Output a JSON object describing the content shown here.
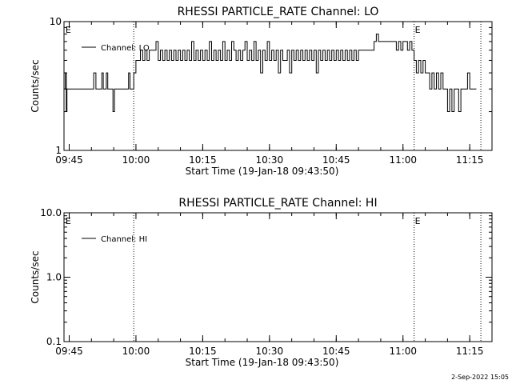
{
  "chart_data": [
    {
      "type": "line",
      "title": "RHESSI PARTICLE_RATE Channel: LO",
      "xlabel": "Start Time (19-Jan-18 09:43:50)",
      "ylabel": "Counts/sec",
      "yscale": "log",
      "ylim": [
        1,
        10
      ],
      "y_ticks": [
        {
          "value": 1,
          "label": "1"
        },
        {
          "value": 10,
          "label": "10"
        }
      ],
      "xlim": [
        "09:43:50",
        "11:20:00"
      ],
      "x_ticks": [
        "09:45",
        "10:00",
        "10:15",
        "10:30",
        "10:45",
        "11:00",
        "11:15"
      ],
      "vlines": [
        "09:59:30",
        "11:02:30",
        "11:17:30"
      ],
      "e_markers": [
        {
          "label": "E",
          "x": "09:44:10"
        },
        {
          "label": "E",
          "x": "11:02:40"
        }
      ],
      "legend": {
        "position": "top-left",
        "entries": [
          "Channel: LO"
        ]
      },
      "series": [
        {
          "name": "Channel: LO",
          "points": [
            [
              "09:44:00",
              3
            ],
            [
              "09:44:10",
              4
            ],
            [
              "09:44:20",
              2
            ],
            [
              "09:44:30",
              3
            ],
            [
              "09:50:00",
              3
            ],
            [
              "09:50:30",
              4
            ],
            [
              "09:51:00",
              3
            ],
            [
              "09:52:00",
              3
            ],
            [
              "09:52:20",
              4
            ],
            [
              "09:52:40",
              3
            ],
            [
              "09:53:00",
              3
            ],
            [
              "09:53:20",
              4
            ],
            [
              "09:53:40",
              3
            ],
            [
              "09:54:30",
              3
            ],
            [
              "09:54:50",
              2
            ],
            [
              "09:55:10",
              3
            ],
            [
              "09:58:00",
              3
            ],
            [
              "09:58:20",
              4
            ],
            [
              "09:58:40",
              3
            ],
            [
              "09:59:30",
              4
            ],
            [
              "10:00:00",
              5
            ],
            [
              "10:00:30",
              5
            ],
            [
              "10:01:00",
              6
            ],
            [
              "10:01:30",
              5
            ],
            [
              "10:02:00",
              6
            ],
            [
              "10:02:30",
              5
            ],
            [
              "10:03:00",
              6
            ],
            [
              "10:04:00",
              6
            ],
            [
              "10:04:30",
              7
            ],
            [
              "10:05:00",
              5
            ],
            [
              "10:05:30",
              6
            ],
            [
              "10:06:00",
              5
            ],
            [
              "10:06:30",
              6
            ],
            [
              "10:07:00",
              5
            ],
            [
              "10:07:30",
              6
            ],
            [
              "10:08:00",
              5
            ],
            [
              "10:08:30",
              6
            ],
            [
              "10:09:00",
              5
            ],
            [
              "10:09:30",
              6
            ],
            [
              "10:10:00",
              5
            ],
            [
              "10:10:30",
              6
            ],
            [
              "10:11:00",
              5
            ],
            [
              "10:11:30",
              6
            ],
            [
              "10:12:00",
              5
            ],
            [
              "10:12:30",
              7
            ],
            [
              "10:13:00",
              5
            ],
            [
              "10:13:30",
              6
            ],
            [
              "10:14:00",
              5
            ],
            [
              "10:14:30",
              6
            ],
            [
              "10:15:00",
              5
            ],
            [
              "10:15:30",
              6
            ],
            [
              "10:16:00",
              5
            ],
            [
              "10:16:30",
              7
            ],
            [
              "10:17:00",
              5
            ],
            [
              "10:17:30",
              6
            ],
            [
              "10:18:00",
              5
            ],
            [
              "10:18:30",
              6
            ],
            [
              "10:19:00",
              5
            ],
            [
              "10:19:30",
              7
            ],
            [
              "10:20:00",
              5
            ],
            [
              "10:20:30",
              6
            ],
            [
              "10:21:00",
              5
            ],
            [
              "10:21:30",
              7
            ],
            [
              "10:22:00",
              6
            ],
            [
              "10:22:30",
              5
            ],
            [
              "10:23:00",
              6
            ],
            [
              "10:23:30",
              5
            ],
            [
              "10:24:00",
              6
            ],
            [
              "10:24:30",
              7
            ],
            [
              "10:25:00",
              5
            ],
            [
              "10:25:30",
              6
            ],
            [
              "10:26:00",
              5
            ],
            [
              "10:26:30",
              7
            ],
            [
              "10:27:00",
              5
            ],
            [
              "10:27:30",
              6
            ],
            [
              "10:28:00",
              4
            ],
            [
              "10:28:30",
              6
            ],
            [
              "10:29:00",
              5
            ],
            [
              "10:29:30",
              7
            ],
            [
              "10:30:00",
              5
            ],
            [
              "10:30:30",
              6
            ],
            [
              "10:31:00",
              5
            ],
            [
              "10:31:30",
              6
            ],
            [
              "10:32:00",
              4
            ],
            [
              "10:32:30",
              6
            ],
            [
              "10:33:00",
              5
            ],
            [
              "10:33:30",
              5
            ],
            [
              "10:34:00",
              6
            ],
            [
              "10:34:30",
              4
            ],
            [
              "10:35:00",
              6
            ],
            [
              "10:35:30",
              5
            ],
            [
              "10:36:00",
              6
            ],
            [
              "10:36:30",
              5
            ],
            [
              "10:37:00",
              6
            ],
            [
              "10:37:30",
              5
            ],
            [
              "10:38:00",
              6
            ],
            [
              "10:38:30",
              5
            ],
            [
              "10:39:00",
              6
            ],
            [
              "10:39:30",
              5
            ],
            [
              "10:40:00",
              6
            ],
            [
              "10:40:30",
              4
            ],
            [
              "10:41:00",
              6
            ],
            [
              "10:41:30",
              5
            ],
            [
              "10:42:00",
              6
            ],
            [
              "10:42:30",
              5
            ],
            [
              "10:43:00",
              6
            ],
            [
              "10:43:30",
              5
            ],
            [
              "10:44:00",
              6
            ],
            [
              "10:44:30",
              5
            ],
            [
              "10:45:00",
              6
            ],
            [
              "10:45:30",
              5
            ],
            [
              "10:46:00",
              6
            ],
            [
              "10:46:30",
              5
            ],
            [
              "10:47:00",
              6
            ],
            [
              "10:47:30",
              5
            ],
            [
              "10:48:00",
              6
            ],
            [
              "10:48:30",
              5
            ],
            [
              "10:49:00",
              6
            ],
            [
              "10:49:30",
              5
            ],
            [
              "10:50:00",
              6
            ],
            [
              "10:50:30",
              6
            ],
            [
              "10:51:00",
              6
            ],
            [
              "10:51:30",
              6
            ],
            [
              "10:52:00",
              6
            ],
            [
              "10:52:30",
              6
            ],
            [
              "10:53:00",
              6
            ],
            [
              "10:53:30",
              7
            ],
            [
              "10:54:00",
              8
            ],
            [
              "10:54:30",
              7
            ],
            [
              "10:55:00",
              7
            ],
            [
              "10:55:30",
              7
            ],
            [
              "10:56:00",
              7
            ],
            [
              "10:57:00",
              7
            ],
            [
              "10:58:00",
              7
            ],
            [
              "10:58:30",
              6
            ],
            [
              "10:59:00",
              7
            ],
            [
              "10:59:30",
              6
            ],
            [
              "11:00:00",
              7
            ],
            [
              "11:00:30",
              7
            ],
            [
              "11:01:00",
              6
            ],
            [
              "11:01:30",
              7
            ],
            [
              "11:02:00",
              6
            ],
            [
              "11:02:30",
              5
            ],
            [
              "11:03:00",
              4
            ],
            [
              "11:03:30",
              5
            ],
            [
              "11:04:00",
              4
            ],
            [
              "11:04:30",
              5
            ],
            [
              "11:05:00",
              4
            ],
            [
              "11:05:30",
              4
            ],
            [
              "11:06:00",
              3
            ],
            [
              "11:06:30",
              4
            ],
            [
              "11:07:00",
              3
            ],
            [
              "11:07:30",
              4
            ],
            [
              "11:08:00",
              3
            ],
            [
              "11:08:30",
              4
            ],
            [
              "11:09:00",
              3
            ],
            [
              "11:09:30",
              3
            ],
            [
              "11:10:00",
              2
            ],
            [
              "11:10:30",
              3
            ],
            [
              "11:11:00",
              2
            ],
            [
              "11:11:30",
              3
            ],
            [
              "11:12:00",
              3
            ],
            [
              "11:12:30",
              2
            ],
            [
              "11:13:00",
              3
            ],
            [
              "11:13:30",
              3
            ],
            [
              "11:14:00",
              3
            ],
            [
              "11:14:30",
              4
            ],
            [
              "11:15:00",
              3
            ],
            [
              "11:16:30",
              3
            ]
          ]
        }
      ]
    },
    {
      "type": "line",
      "title": "RHESSI PARTICLE_RATE Channel: HI",
      "xlabel": "Start Time (19-Jan-18 09:43:50)",
      "ylabel": "Counts/sec",
      "yscale": "log",
      "ylim": [
        0.1,
        10
      ],
      "y_ticks": [
        {
          "value": 0.1,
          "label": "0.1"
        },
        {
          "value": 1,
          "label": "1.0"
        },
        {
          "value": 10,
          "label": "10.0"
        }
      ],
      "xlim": [
        "09:43:50",
        "11:20:00"
      ],
      "x_ticks": [
        "09:45",
        "10:00",
        "10:15",
        "10:30",
        "10:45",
        "11:00",
        "11:15"
      ],
      "vlines": [
        "09:59:30",
        "11:02:30",
        "11:17:30"
      ],
      "e_markers": [
        {
          "label": "E",
          "x": "09:44:10"
        },
        {
          "label": "E",
          "x": "11:02:40"
        }
      ],
      "legend": {
        "position": "top-left",
        "entries": [
          "Channel: HI"
        ]
      },
      "series": [
        {
          "name": "Channel: HI",
          "points": []
        }
      ]
    }
  ],
  "date_stamp": "2-Sep-2022 15:05"
}
